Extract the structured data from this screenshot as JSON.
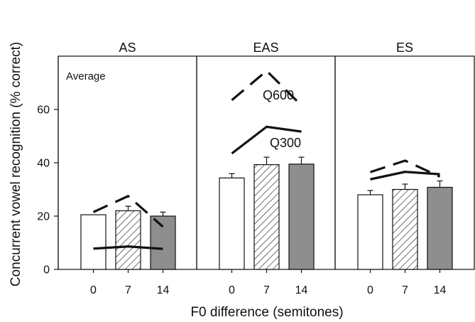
{
  "chart_data": {
    "type": "bar",
    "ylabel": "Concurrent vowel recognition (% correct)",
    "xlabel": "F0 difference (semitones)",
    "ylim": [
      0,
      80
    ],
    "yticks": [
      0,
      20,
      40,
      60
    ],
    "annotation": "Average",
    "panels": [
      {
        "title": "AS",
        "categories": [
          "0",
          "7",
          "14"
        ],
        "values": [
          20.5,
          22,
          20
        ],
        "errors": [
          0,
          1.7,
          1.5
        ],
        "lines": [
          {
            "name": "",
            "style": "dashed",
            "values": [
              21.5,
              27.5,
              16
            ]
          },
          {
            "name": "",
            "style": "solid",
            "values": [
              7.8,
              8.6,
              7.7
            ]
          }
        ]
      },
      {
        "title": "EAS",
        "categories": [
          "0",
          "7",
          "14"
        ],
        "values": [
          34.3,
          39.3,
          39.5
        ],
        "errors": [
          1.6,
          2.8,
          2.6
        ],
        "lines": [
          {
            "name": "Q600",
            "style": "dashed",
            "values": [
              63.5,
              74.5,
              61.5
            ]
          },
          {
            "name": "Q300",
            "style": "solid",
            "values": [
              43.5,
              53.5,
              51.7
            ]
          }
        ]
      },
      {
        "title": "ES",
        "categories": [
          "0",
          "7",
          "14"
        ],
        "values": [
          28,
          30,
          30.8
        ],
        "errors": [
          1.6,
          2,
          2.4
        ],
        "lines": [
          {
            "name": "",
            "style": "dashed",
            "values": [
              36.5,
              40.8,
              34.8
            ]
          },
          {
            "name": "",
            "style": "solid",
            "values": [
              33.8,
              36.6,
              35.7
            ]
          }
        ]
      }
    ],
    "bar_fills": [
      "white",
      "hatched",
      "gray"
    ],
    "colors": {
      "bar_gray": "#8e8e8e",
      "stroke": "#111111"
    }
  }
}
